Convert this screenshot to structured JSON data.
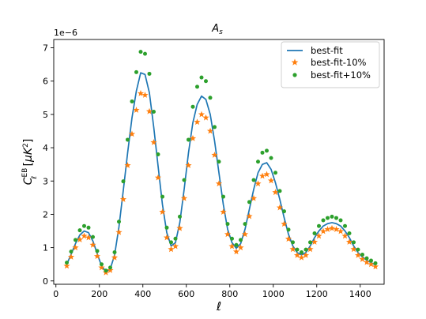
{
  "chart_data": {
    "type": "line",
    "title": "A_s",
    "xlabel": "ℓ",
    "ylabel": "C_ℓ^EB [μK²]",
    "y_multiplier": "1e−6",
    "xlim": [
      -10,
      1510
    ],
    "ylim": [
      -0.1,
      7.25
    ],
    "x_ticks": [
      0,
      200,
      400,
      600,
      800,
      1000,
      1200,
      1400
    ],
    "y_ticks": [
      0,
      1,
      2,
      3,
      4,
      5,
      6,
      7
    ],
    "grid": false,
    "legend_position": "top-right",
    "x": [
      50,
      70,
      90,
      110,
      130,
      150,
      170,
      190,
      210,
      230,
      250,
      270,
      290,
      310,
      330,
      350,
      370,
      390,
      410,
      430,
      450,
      470,
      490,
      510,
      530,
      550,
      570,
      590,
      610,
      630,
      650,
      670,
      690,
      710,
      730,
      750,
      770,
      790,
      810,
      830,
      850,
      870,
      890,
      910,
      930,
      950,
      970,
      990,
      1010,
      1030,
      1050,
      1070,
      1090,
      1110,
      1130,
      1150,
      1170,
      1190,
      1210,
      1230,
      1250,
      1270,
      1290,
      1310,
      1330,
      1350,
      1370,
      1390,
      1410,
      1430,
      1450,
      1470
    ],
    "series": [
      {
        "name": "best-fit",
        "style": "line",
        "color": "#1f77b4",
        "values": [
          0.5,
          0.8,
          1.12,
          1.38,
          1.5,
          1.45,
          1.2,
          0.82,
          0.45,
          0.28,
          0.36,
          0.78,
          1.62,
          2.72,
          3.85,
          4.9,
          5.7,
          6.25,
          6.2,
          5.65,
          4.62,
          3.45,
          2.3,
          1.45,
          1.05,
          1.15,
          1.75,
          2.75,
          3.85,
          4.75,
          5.3,
          5.55,
          5.45,
          5.0,
          4.2,
          3.25,
          2.3,
          1.55,
          1.15,
          0.98,
          1.12,
          1.55,
          2.15,
          2.75,
          3.25,
          3.5,
          3.55,
          3.35,
          2.95,
          2.45,
          1.9,
          1.4,
          1.05,
          0.85,
          0.78,
          0.85,
          1.05,
          1.3,
          1.5,
          1.65,
          1.72,
          1.75,
          1.72,
          1.65,
          1.5,
          1.3,
          1.05,
          0.85,
          0.72,
          0.62,
          0.55,
          0.48
        ]
      },
      {
        "name": "best-fit-10%",
        "style": "star",
        "color": "#ff7f0e",
        "values": [
          0.45,
          0.72,
          1.0,
          1.24,
          1.35,
          1.3,
          1.08,
          0.74,
          0.4,
          0.25,
          0.32,
          0.7,
          1.46,
          2.45,
          3.47,
          4.41,
          5.13,
          5.63,
          5.58,
          5.09,
          4.16,
          3.1,
          2.07,
          1.3,
          0.95,
          1.04,
          1.58,
          2.48,
          3.47,
          4.28,
          4.77,
          5.0,
          4.9,
          4.5,
          3.78,
          2.92,
          2.07,
          1.4,
          1.04,
          0.88,
          1.0,
          1.4,
          1.94,
          2.48,
          2.92,
          3.15,
          3.2,
          3.01,
          2.66,
          2.2,
          1.71,
          1.26,
          0.95,
          0.77,
          0.7,
          0.77,
          0.95,
          1.17,
          1.35,
          1.49,
          1.55,
          1.58,
          1.55,
          1.49,
          1.35,
          1.17,
          0.95,
          0.77,
          0.65,
          0.56,
          0.5,
          0.43
        ]
      },
      {
        "name": "best-fit+10%",
        "style": "dot",
        "color": "#2ca02c",
        "values": [
          0.55,
          0.88,
          1.23,
          1.52,
          1.65,
          1.6,
          1.32,
          0.9,
          0.5,
          0.31,
          0.4,
          0.86,
          1.78,
          2.99,
          4.24,
          5.39,
          6.27,
          6.88,
          6.82,
          6.22,
          5.08,
          3.8,
          2.53,
          1.6,
          1.16,
          1.27,
          1.93,
          3.03,
          4.24,
          5.23,
          5.83,
          6.11,
          6.0,
          5.5,
          4.62,
          3.58,
          2.53,
          1.71,
          1.27,
          1.08,
          1.23,
          1.71,
          2.37,
          3.03,
          3.58,
          3.85,
          3.91,
          3.69,
          3.25,
          2.7,
          2.09,
          1.54,
          1.16,
          0.94,
          0.86,
          0.94,
          1.16,
          1.43,
          1.65,
          1.82,
          1.89,
          1.93,
          1.89,
          1.82,
          1.65,
          1.43,
          1.16,
          0.94,
          0.79,
          0.68,
          0.61,
          0.53
        ]
      }
    ]
  }
}
